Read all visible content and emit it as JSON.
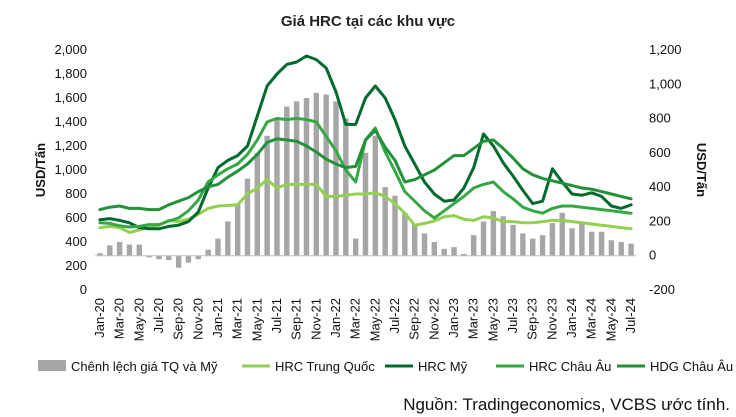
{
  "chart_data": {
    "type": "bar+line",
    "title": "Giá HRC tại các khu vực",
    "ylabel_left": "USD/Tấn",
    "ylabel_right": "USD/Tấn",
    "ylim_left": [
      0,
      2000
    ],
    "yticks_left": [
      "0",
      "200",
      "400",
      "600",
      "800",
      "1,000",
      "1,200",
      "1,400",
      "1,600",
      "1,800",
      "2,000"
    ],
    "ylim_right": [
      -200,
      1200
    ],
    "yticks_right": [
      "-200",
      "0",
      "200",
      "400",
      "600",
      "800",
      "1,000",
      "1,200"
    ],
    "x": [
      "2020-01",
      "2020-02",
      "2020-03",
      "2020-04",
      "2020-05",
      "2020-06",
      "2020-07",
      "2020-08",
      "2020-09",
      "2020-10",
      "2020-11",
      "2020-12",
      "2021-01",
      "2021-02",
      "2021-03",
      "2021-04",
      "2021-05",
      "2021-06",
      "2021-07",
      "2021-08",
      "2021-09",
      "2021-10",
      "2021-11",
      "2021-12",
      "2022-01",
      "2022-02",
      "2022-03",
      "2022-04",
      "2022-05",
      "2022-06",
      "2022-07",
      "2022-08",
      "2022-09",
      "2022-10",
      "2022-11",
      "2022-12",
      "2023-01",
      "2023-02",
      "2023-03",
      "2023-04",
      "2023-05",
      "2023-06",
      "2023-07",
      "2023-08",
      "2023-09",
      "2023-10",
      "2023-11",
      "2023-12",
      "2024-01",
      "2024-02",
      "2024-03",
      "2024-04",
      "2024-05",
      "2024-06",
      "2024-07"
    ],
    "xtick_labels": [
      "Jan-20",
      "Mar-20",
      "May-20",
      "Jul-20",
      "Sep-20",
      "Nov-20",
      "Jan-21",
      "Mar-21",
      "May-21",
      "Jul-21",
      "Sep-21",
      "Nov-21",
      "Jan-22",
      "Mar-22",
      "May-22",
      "Jul-22",
      "Sep-22",
      "Nov-22",
      "Jan-23",
      "Mar-23",
      "May-23",
      "Jul-23",
      "Sep-23",
      "Nov-23",
      "Jan-24",
      "Mar-24",
      "May-24",
      "Jul-24"
    ],
    "legend": "bottom",
    "series": [
      {
        "name": "Chênh lệch giá TQ và Mỹ",
        "kind": "bar",
        "axis": "right",
        "color": "#a6a6a6",
        "values": [
          15,
          60,
          80,
          65,
          65,
          -10,
          -20,
          -25,
          -70,
          -40,
          -20,
          35,
          100,
          200,
          300,
          450,
          600,
          700,
          800,
          870,
          900,
          920,
          950,
          940,
          900,
          800,
          100,
          600,
          700,
          400,
          350,
          250,
          180,
          130,
          80,
          40,
          50,
          10,
          120,
          200,
          260,
          230,
          180,
          130,
          100,
          120,
          190,
          250,
          160,
          190,
          140,
          140,
          90,
          80,
          70
        ]
      },
      {
        "name": "HRC Trung Quốc",
        "kind": "line",
        "axis": "left",
        "color": "#92d050",
        "values": [
          520,
          530,
          520,
          480,
          500,
          530,
          540,
          580,
          570,
          590,
          630,
          680,
          700,
          705,
          710,
          800,
          850,
          920,
          850,
          880,
          880,
          880,
          880,
          780,
          780,
          790,
          800,
          800,
          810,
          780,
          720,
          640,
          540,
          555,
          575,
          610,
          620,
          590,
          580,
          610,
          600,
          570,
          570,
          560,
          560,
          570,
          580,
          580,
          570,
          560,
          550,
          540,
          530,
          520,
          510
        ]
      },
      {
        "name": "HRC Mỹ",
        "kind": "line",
        "axis": "left",
        "color": "#006b2d",
        "values": [
          585,
          595,
          580,
          560,
          520,
          510,
          510,
          530,
          540,
          570,
          650,
          850,
          1020,
          1080,
          1120,
          1200,
          1450,
          1700,
          1800,
          1880,
          1900,
          1950,
          1920,
          1850,
          1650,
          1380,
          1380,
          1600,
          1700,
          1600,
          1420,
          1200,
          1050,
          900,
          800,
          740,
          750,
          850,
          1020,
          1300,
          1200,
          1060,
          950,
          830,
          720,
          740,
          1010,
          900,
          800,
          790,
          810,
          780,
          700,
          680,
          710
        ]
      },
      {
        "name": "HRC Châu Âu",
        "kind": "line",
        "axis": "left",
        "color": "#35a745",
        "values": [
          560,
          555,
          535,
          525,
          530,
          545,
          545,
          575,
          600,
          660,
          750,
          900,
          960,
          1010,
          1050,
          1130,
          1250,
          1400,
          1430,
          1420,
          1430,
          1420,
          1400,
          1280,
          1160,
          1000,
          900,
          1250,
          1350,
          1150,
          990,
          820,
          740,
          660,
          600,
          660,
          720,
          780,
          850,
          880,
          900,
          820,
          760,
          690,
          660,
          640,
          680,
          700,
          700,
          690,
          680,
          670,
          660,
          650,
          640
        ]
      },
      {
        "name": "HDG Châu Âu",
        "kind": "line",
        "axis": "left",
        "color": "#22913a",
        "values": [
          670,
          690,
          700,
          680,
          680,
          670,
          670,
          710,
          740,
          770,
          820,
          860,
          880,
          940,
          990,
          1050,
          1130,
          1230,
          1260,
          1250,
          1240,
          1200,
          1150,
          1090,
          1050,
          1020,
          1030,
          1250,
          1330,
          1190,
          1080,
          900,
          920,
          960,
          1000,
          1060,
          1120,
          1120,
          1180,
          1240,
          1250,
          1180,
          1100,
          1010,
          960,
          930,
          910,
          890,
          870,
          850,
          840,
          820,
          800,
          780,
          760
        ]
      }
    ],
    "source": "Nguồn: Tradingeconomics, VCBS ước tính."
  }
}
